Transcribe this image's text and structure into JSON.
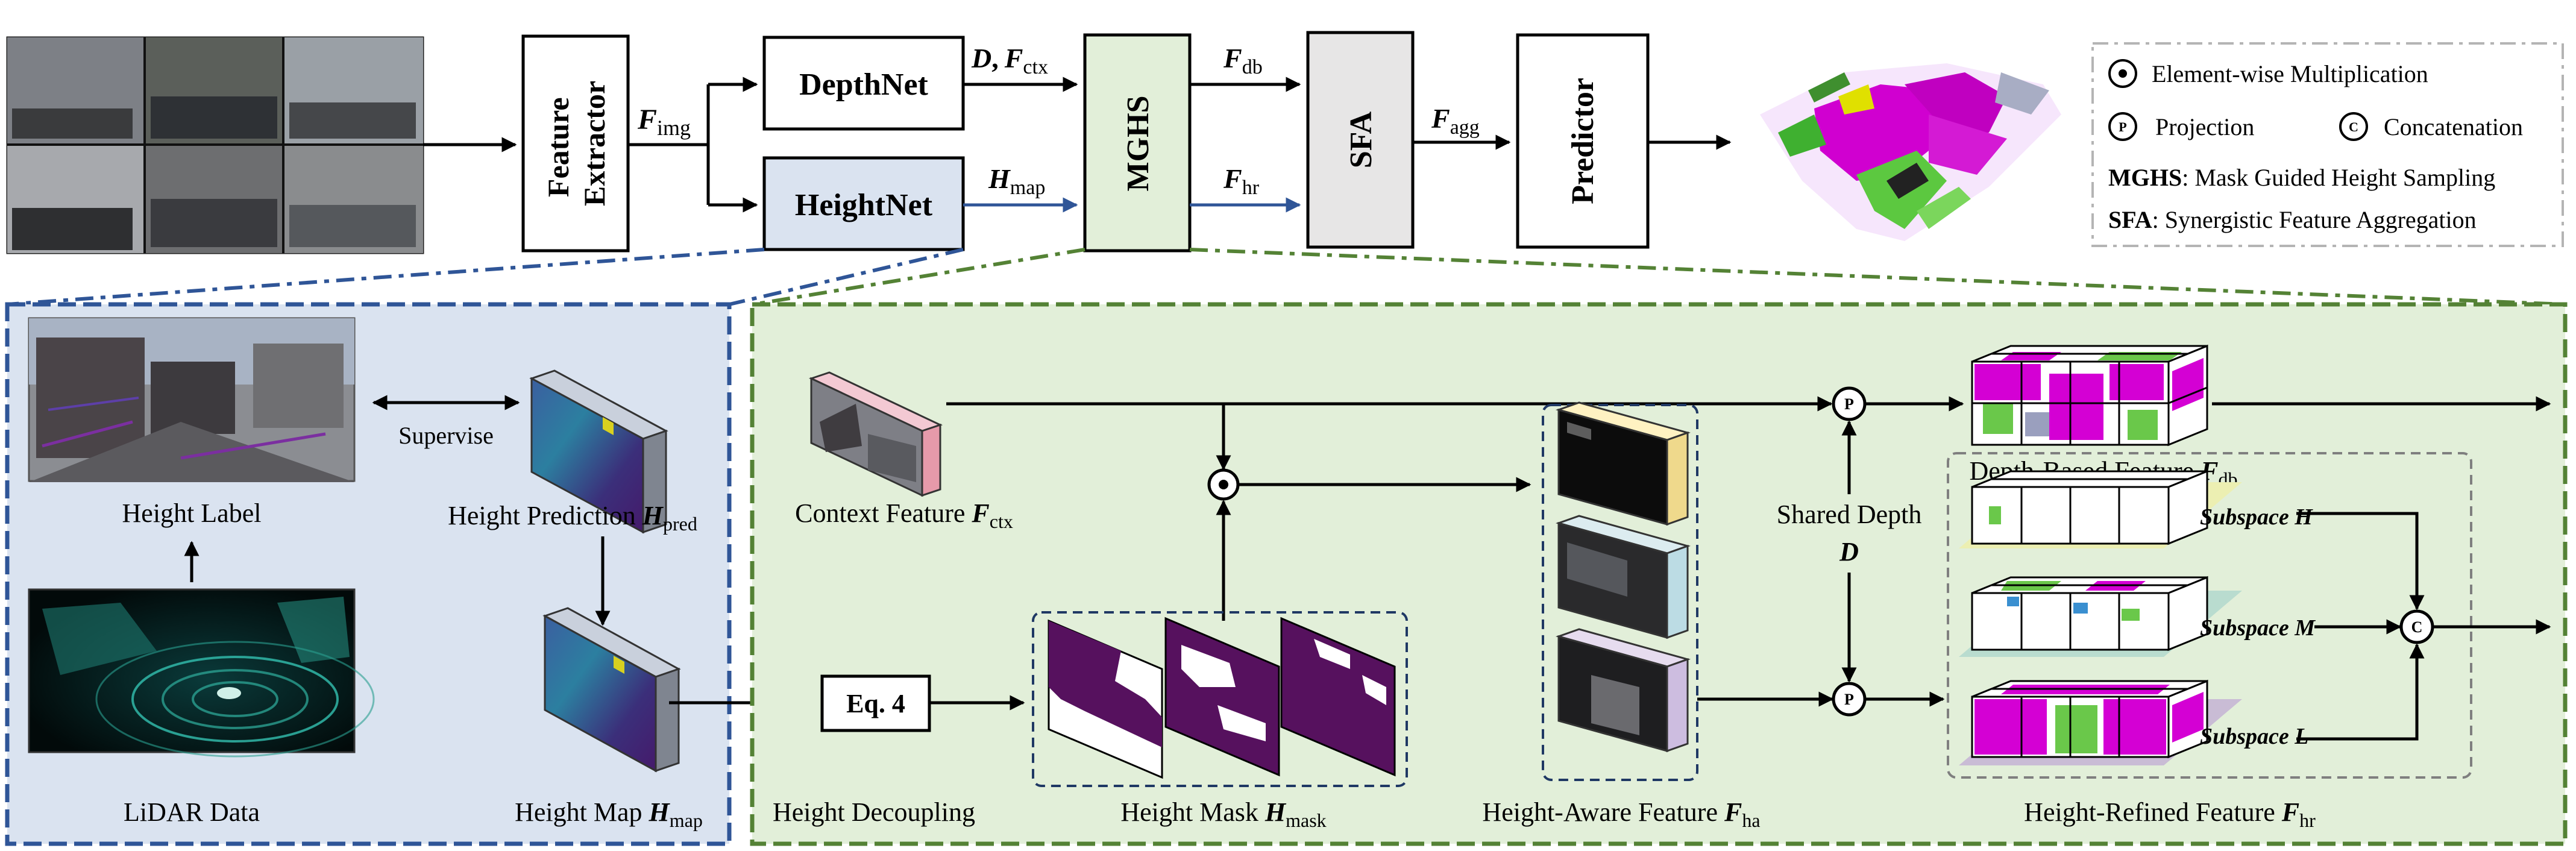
{
  "colors": {
    "blue_panel_bg": "#dae3f0",
    "blue_border": "#2f5597",
    "green_panel_bg": "#e2efd9",
    "green_border": "#548235",
    "heightnet_fill": "#dae3f0",
    "mghs_fill": "#e2efd9",
    "sfa_fill": "#e7e6e6",
    "arrow_blue": "#2f5597"
  },
  "top": {
    "feature_extractor": [
      "Feature",
      "Extractor"
    ],
    "depthnet": "DepthNet",
    "heightnet": "HeightNet",
    "mghs": "MGHS",
    "sfa": "SFA",
    "predictor": "Predictor",
    "f_img": {
      "main": "F",
      "sub": "img"
    },
    "d_fctx": {
      "d": "D",
      "sep": ",",
      "f": "F",
      "sub": "ctx"
    },
    "h_map": {
      "main": "H",
      "sub": "map"
    },
    "f_db": {
      "main": "F",
      "sub": "db"
    },
    "f_hr": {
      "main": "F",
      "sub": "hr"
    },
    "f_agg": {
      "main": "F",
      "sub": "agg"
    }
  },
  "legend": {
    "elementwise": "Element-wise  Multiplication",
    "projection": "Projection",
    "concatenation": "Concatenation",
    "p_symbol": "P",
    "c_symbol": "C",
    "mghs_abbr": "MGHS",
    "mghs_desc": ": Mask Guided Height Sampling",
    "sfa_abbr": "SFA",
    "sfa_desc": ":   Synergistic Feature Aggregation"
  },
  "left_panel": {
    "supervise": "Supervise",
    "height_label": "Height Label",
    "height_prediction": {
      "text": "Height Prediction ",
      "main": "H",
      "sub": "pred"
    },
    "lidar_data": "LiDAR Data",
    "height_map": {
      "text": "Height Map ",
      "main": "H",
      "sub": "map"
    }
  },
  "right_panel": {
    "context_feature": {
      "text": "Context Feature ",
      "main": "F",
      "sub": "ctx"
    },
    "eq4": "Eq. 4",
    "height_decoupling": "Height Decoupling",
    "height_mask": {
      "text": "Height Mask ",
      "main": "H",
      "sub": "mask"
    },
    "height_aware": {
      "text": "Height-Aware Feature ",
      "main": "F",
      "sub": "ha"
    },
    "shared_depth": "Shared Depth",
    "shared_depth_symbol": "D",
    "depth_based": {
      "text": "Depth-Based Feature ",
      "main": "F",
      "sub": "db"
    },
    "height_refined": {
      "text": "Height-Refined Feature ",
      "main": "F",
      "sub": "hr"
    },
    "subspace_h": "Subspace H",
    "subspace_m": "Subspace M",
    "subspace_l": "Subspace L",
    "p_symbol": "P",
    "c_symbol": "C"
  }
}
